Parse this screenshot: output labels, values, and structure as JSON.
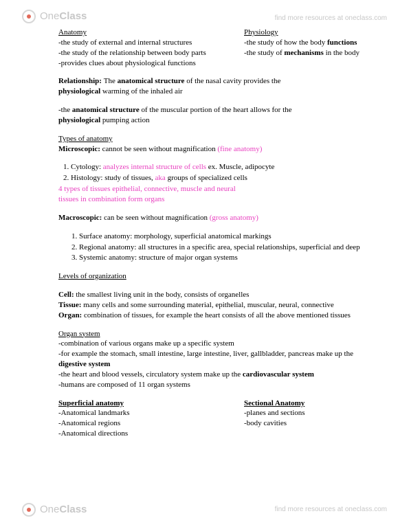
{
  "watermark": {
    "brand_one": "One",
    "brand_class": "Class",
    "top_link": "find more resources at oneclass.com",
    "bottom_link": "find more resources at oneclass.com"
  },
  "header": {
    "left_title": "Anatomy",
    "left_lines": [
      "-the study of external and internal structures",
      "-the study of the relationship between body parts",
      "-provides clues about physiological functions"
    ],
    "right_title": "Physiology",
    "right_lines_1a": "-the study of how the body ",
    "right_lines_1b": "functions",
    "right_lines_2a": "-the study of ",
    "right_lines_2b": "mechanisms",
    "right_lines_2c": " in the body"
  },
  "relationship": {
    "label": "Relationship: ",
    "t1a": "The ",
    "t1b": "anatomical structure",
    "t1c": " of the nasal cavity provides the ",
    "t2a": "physiological",
    "t2b": " warming of the inhaled air",
    "t3a": "-the ",
    "t3b": "anatomical structure",
    "t3c": " of the muscular portion of the heart allows for the ",
    "t4a": "physiological",
    "t4b": " pumping action"
  },
  "types": {
    "heading": "Types of anatomy",
    "micro_label": "Microscopic:",
    "micro_text": " cannot be seen without magnification ",
    "micro_pink": "(fine anatomy)",
    "items": [
      {
        "pre": "Cytology: ",
        "pink": "analyzes internal structure of cells",
        "post": " ex. Muscle, adipocyte"
      },
      {
        "pre": "Histology: study of tissues, ",
        "pink": "aka",
        "post": " groups of specialized cells"
      }
    ],
    "pink_block_1": "4 types of tissues epithelial, connective, muscle and neural",
    "pink_block_2": "tissues in combination form organs",
    "macro_label": "Macroscopic:",
    "macro_text": " can be seen without magnification ",
    "macro_pink": "(gross anatomy)",
    "sub": [
      "Surface anatomy: morphology, superficial anatomical markings",
      "Regional anatomy: all structures in a specific area, special relationships, superficial and deep",
      "Systemic anatomy: structure of major organ systems"
    ]
  },
  "levels": {
    "heading": "Levels of organization",
    "cell_label": "Cell:",
    "cell_text": " the smallest living unit in the body, consists of organelles",
    "tissue_label": "Tissue:",
    "tissue_text": " many cells and some surrounding material, epithelial, muscular, neural, connective",
    "organ_label": "Organ:",
    "organ_text": " combination of tissues, for example the heart consists of all the above mentioned tissues"
  },
  "organ_system": {
    "heading": "Organ system",
    "l1": "-combination of various organs make up a specific system",
    "l2a": "-for example the stomach, small intestine, large intestine, liver, gallbladder, pancreas make up the ",
    "l2b": "digestive system",
    "l3a": "-the heart and blood vessels, circulatory system make up the ",
    "l3b": "cardiovascular system",
    "l4": "-humans are composed of 11 organ systems"
  },
  "bottom_cols": {
    "left_heading": "Superficial anatomy",
    "left_items": [
      "-Anatomical landmarks",
      "-Anatomical regions",
      "-Anatomical directions"
    ],
    "right_heading": "Sectional Anatomy",
    "right_items": [
      "-planes and sections",
      "-body cavities"
    ]
  }
}
